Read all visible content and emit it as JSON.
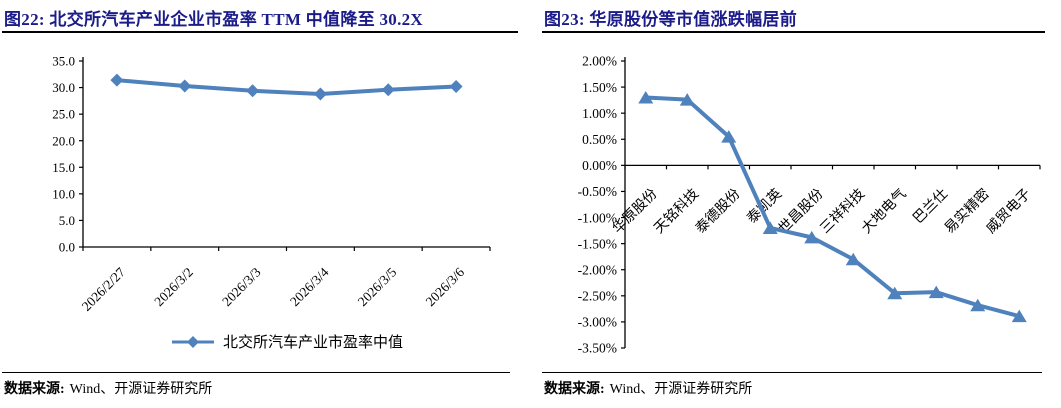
{
  "figures": [
    {
      "title": "图22: 北交所汽车产业企业市盈率 TTM 中值降至 30.2X",
      "source_label": "数据来源:",
      "source_text": "Wind、开源证券研究所"
    },
    {
      "title": "图23: 华原股份等市值涨跌幅居前",
      "source_label": "数据来源:",
      "source_text": "Wind、开源证券研究所"
    }
  ],
  "colors": {
    "title_navy": "#1b1b8a",
    "line_blue": "#4f81bd",
    "axis_black": "#000000"
  },
  "chart_data": [
    {
      "type": "line",
      "marker": "diamond",
      "title": "北交所汽车产业企业市盈率TTM中值",
      "categories": [
        "2026/2/27",
        "2026/3/2",
        "2026/3/3",
        "2026/3/4",
        "2026/3/5",
        "2026/3/6"
      ],
      "values": [
        31.4,
        30.3,
        29.4,
        28.8,
        29.6,
        30.2
      ],
      "ylim": [
        0,
        35
      ],
      "ytick_step": 5,
      "ytick_format": "number1dp",
      "grid": false,
      "legend": [
        "北交所汽车产业市盈率中值"
      ],
      "legend_position": "bottom",
      "line_color": "#4f81bd"
    },
    {
      "type": "line",
      "marker": "triangle",
      "title": "市值涨跌幅",
      "categories": [
        "华原股份",
        "天铭科技",
        "泰德股份",
        "泰凯英",
        "世昌股份",
        "三祥科技",
        "大地电气",
        "巴兰仕",
        "易实精密",
        "威贸电子"
      ],
      "values": [
        1.3,
        1.26,
        0.55,
        -1.2,
        -1.38,
        -1.8,
        -2.45,
        -2.43,
        -2.68,
        -2.89
      ],
      "ylim": [
        -3.5,
        2.0
      ],
      "ytick_step": 0.5,
      "ytick_format": "percent2dp",
      "grid": false,
      "legend": [],
      "line_color": "#4f81bd"
    }
  ]
}
